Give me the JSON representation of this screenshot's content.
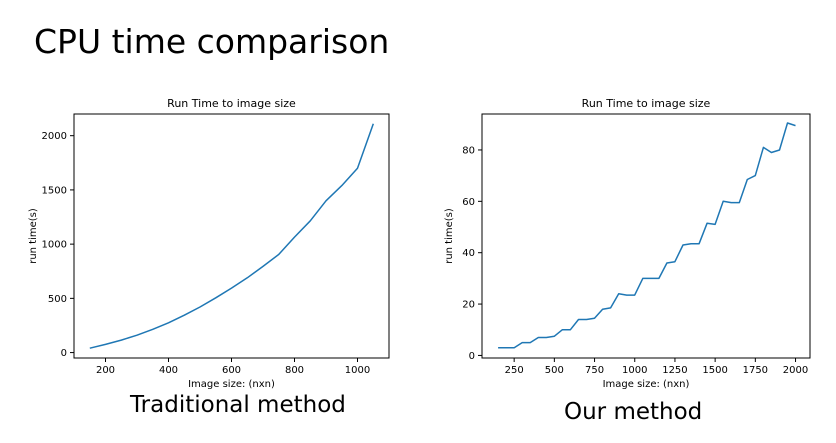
{
  "slide": {
    "title": "CPU time comparison",
    "captions": [
      "Traditional method",
      "Our method"
    ]
  },
  "colors": {
    "line": "#1f77b4",
    "axes": "#000000"
  },
  "chart_data": [
    {
      "type": "line",
      "title": "Run Time to image size",
      "xlabel": "Image size: (nxn)",
      "ylabel": "run time(s)",
      "xlim": [
        100,
        1100
      ],
      "ylim": [
        -50,
        2200
      ],
      "xticks": [
        200,
        400,
        600,
        800,
        1000
      ],
      "yticks": [
        0,
        500,
        1000,
        1500,
        2000
      ],
      "grid": false,
      "series": [
        {
          "x": [
            150,
            200,
            250,
            300,
            350,
            400,
            450,
            500,
            550,
            600,
            650,
            700,
            750,
            800,
            850,
            900,
            950,
            1000,
            1050
          ],
          "y": [
            40,
            75,
            115,
            160,
            215,
            275,
            345,
            420,
            505,
            595,
            690,
            795,
            905,
            1065,
            1215,
            1400,
            1540,
            1700,
            2110
          ]
        }
      ]
    },
    {
      "type": "line",
      "title": "Run Time to image size",
      "xlabel": "Image size: (nxn)",
      "ylabel": "run time(s)",
      "xlim": [
        50,
        2090
      ],
      "ylim": [
        -1,
        94
      ],
      "xticks": [
        250,
        500,
        750,
        1000,
        1250,
        1500,
        1750,
        2000
      ],
      "yticks": [
        0,
        20,
        40,
        60,
        80
      ],
      "grid": false,
      "series": [
        {
          "x": [
            150,
            200,
            250,
            300,
            350,
            400,
            450,
            500,
            550,
            600,
            650,
            700,
            750,
            800,
            850,
            900,
            950,
            1000,
            1050,
            1100,
            1150,
            1200,
            1250,
            1300,
            1350,
            1400,
            1450,
            1500,
            1550,
            1600,
            1650,
            1700,
            1750,
            1800,
            1850,
            1900,
            1950,
            2000
          ],
          "y": [
            3,
            3,
            3,
            5,
            5,
            7,
            7,
            7.5,
            10,
            10,
            14,
            14,
            14.5,
            18,
            18.5,
            24,
            23.5,
            23.5,
            30,
            30,
            30,
            36,
            36.5,
            43,
            43.5,
            43.5,
            51.5,
            51,
            60,
            59.5,
            59.5,
            68.5,
            70,
            81,
            79,
            80,
            90.5,
            89.5
          ]
        }
      ]
    }
  ]
}
